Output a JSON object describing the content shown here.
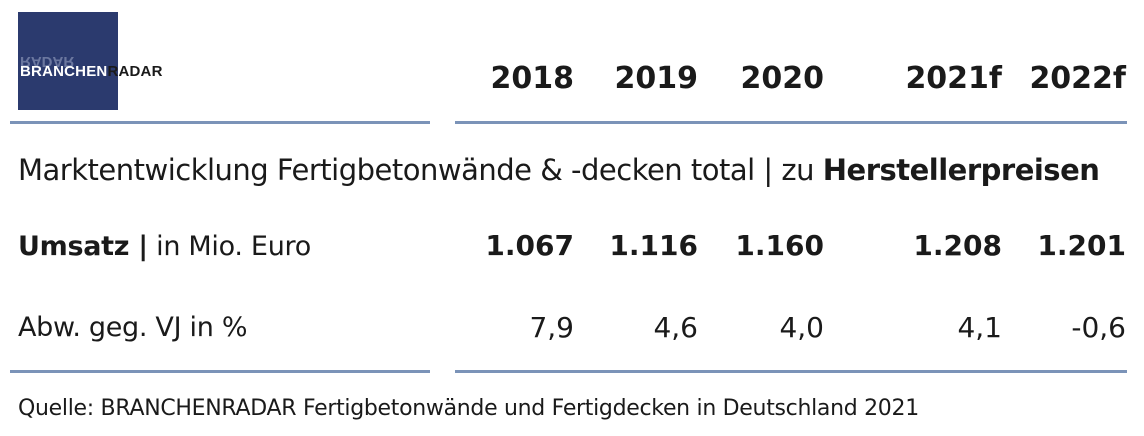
{
  "logo": {
    "text_part1": "BRANCHEN",
    "text_part2": "RADAR",
    "colors": {
      "box": "#2b3a6e",
      "part1": "#ffffff",
      "part2": "#1a1a1a"
    }
  },
  "chart_data": {
    "type": "table",
    "title": "Marktentwicklung Fertigbetonwände & -decken total | zu",
    "title_bold": "Herstellerpreisen",
    "columns": [
      "2018",
      "2019",
      "2020",
      "2021f",
      "2022f"
    ],
    "rows": [
      {
        "label_bold": "Umsatz |",
        "label": " in Mio. Euro",
        "values": [
          "1.067",
          "1.116",
          "1.160",
          "1.208",
          "1.201"
        ]
      },
      {
        "label_bold": "",
        "label": "Abw. geg. VJ in %",
        "values": [
          "7,9",
          "4,6",
          "4,0",
          "4,1",
          "-0,6"
        ]
      }
    ],
    "source": "Quelle: BRANCHENRADAR Fertigbetonwände und Fertigdecken in Deutschland 2021",
    "colors": {
      "rule": "#7b93b8"
    }
  }
}
